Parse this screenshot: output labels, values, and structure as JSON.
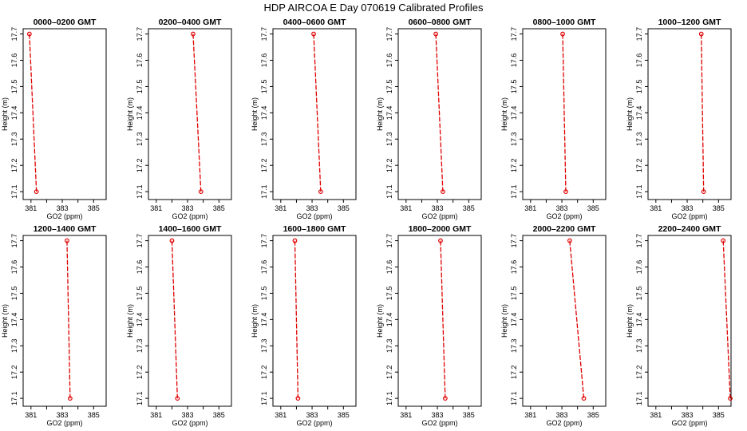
{
  "title": "HDP  AIRCOA E  Day 070619  Calibrated Profiles",
  "axes": {
    "xlabel": "GO2 (ppm)",
    "ylabel": "Height (m)",
    "xlim": [
      380.5,
      385.8
    ],
    "ylim": [
      17.07,
      17.72
    ],
    "xticks": [
      "381",
      "383",
      "385"
    ],
    "xtick_minor": [
      382,
      384
    ],
    "yticks": [
      "17.1",
      "17.2",
      "17.3",
      "17.4",
      "17.5",
      "17.6",
      "17.7"
    ]
  },
  "colors": {
    "profile": "#e00000",
    "axis": "#000000"
  },
  "chart_data": [
    {
      "type": "line",
      "title": "0000–0200 GMT",
      "x": [
        380.9,
        381.35
      ],
      "y": [
        17.7,
        17.1
      ]
    },
    {
      "type": "line",
      "title": "0200–0400 GMT",
      "x": [
        383.35,
        383.85
      ],
      "y": [
        17.7,
        17.1
      ]
    },
    {
      "type": "line",
      "title": "0400–0600 GMT",
      "x": [
        383.1,
        383.55
      ],
      "y": [
        17.7,
        17.1
      ]
    },
    {
      "type": "line",
      "title": "0600–0800 GMT",
      "x": [
        382.9,
        383.35
      ],
      "y": [
        17.7,
        17.1
      ]
    },
    {
      "type": "line",
      "title": "0800–1000 GMT",
      "x": [
        383.05,
        383.25
      ],
      "y": [
        17.7,
        17.1
      ]
    },
    {
      "type": "line",
      "title": "1000–1200 GMT",
      "x": [
        383.9,
        384.05
      ],
      "y": [
        17.7,
        17.1
      ]
    },
    {
      "type": "line",
      "title": "1200–1400 GMT",
      "x": [
        383.3,
        383.5
      ],
      "y": [
        17.7,
        17.1
      ]
    },
    {
      "type": "line",
      "title": "1400–1600 GMT",
      "x": [
        382.0,
        382.35
      ],
      "y": [
        17.7,
        17.1
      ]
    },
    {
      "type": "line",
      "title": "1600–1800 GMT",
      "x": [
        381.9,
        382.1
      ],
      "y": [
        17.7,
        17.1
      ]
    },
    {
      "type": "line",
      "title": "1800–2000 GMT",
      "x": [
        383.2,
        383.5
      ],
      "y": [
        17.7,
        17.1
      ]
    },
    {
      "type": "line",
      "title": "2000–2200 GMT",
      "x": [
        383.5,
        384.4
      ],
      "y": [
        17.7,
        17.1
      ]
    },
    {
      "type": "line",
      "title": "2200–2400 GMT",
      "x": [
        385.3,
        385.75
      ],
      "y": [
        17.7,
        17.1
      ]
    }
  ]
}
